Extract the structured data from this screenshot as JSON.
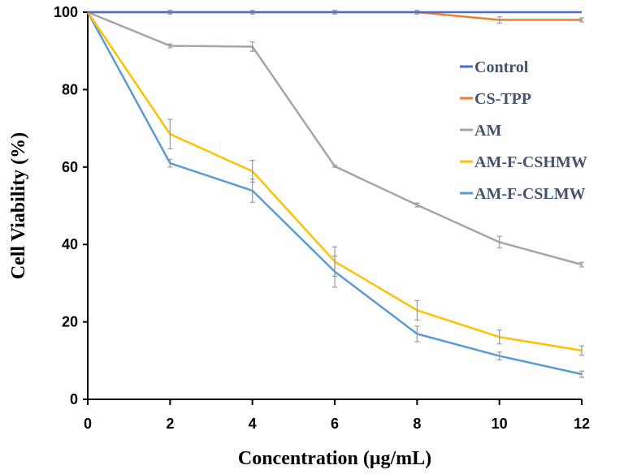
{
  "chart_data": {
    "type": "line",
    "title": "",
    "xlabel": "Concentration (μg/mL)",
    "ylabel": "Cell Viability (%)",
    "xlim": [
      0,
      12
    ],
    "ylim": [
      0,
      100
    ],
    "x_ticks": [
      "0",
      "2",
      "4",
      "6",
      "8",
      "10",
      "12"
    ],
    "y_ticks": [
      "0",
      "20",
      "40",
      "60",
      "80",
      "100"
    ],
    "legend_position": "right",
    "grid": false,
    "x": [
      0,
      2,
      4,
      6,
      8,
      10,
      12
    ],
    "series": [
      {
        "name": "Control",
        "color": "#4472C4",
        "values": [
          100,
          100,
          100,
          100,
          100,
          100,
          100
        ],
        "errors": [
          0,
          0,
          0,
          0,
          0,
          0,
          0
        ]
      },
      {
        "name": "CS-TPP",
        "color": "#ED7D31",
        "values": [
          100,
          100,
          100,
          100,
          100,
          98,
          98
        ],
        "errors": [
          0,
          0.5,
          0.5,
          0.5,
          0.5,
          0.8,
          0.5
        ]
      },
      {
        "name": "AM",
        "color": "#A5A5A5",
        "values": [
          100,
          91.3,
          91.1,
          60.2,
          50.2,
          40.6,
          34.8
        ],
        "errors": [
          0,
          0.5,
          1.2,
          0.3,
          0.5,
          1.5,
          0.6
        ]
      },
      {
        "name": "AM-F-CSHMW",
        "color": "#FFC000",
        "values": [
          100,
          68.5,
          58.9,
          35.6,
          23.0,
          16.1,
          12.6
        ],
        "errors": [
          0,
          3.8,
          2.8,
          3.8,
          2.5,
          1.8,
          1.2
        ]
      },
      {
        "name": "AM-F-CSLMW",
        "color": "#5B9BD5",
        "values": [
          100,
          61.0,
          53.9,
          33.0,
          16.9,
          11.2,
          6.5
        ],
        "errors": [
          0,
          1.0,
          3.0,
          4.0,
          2.0,
          1.0,
          0.8
        ]
      }
    ]
  }
}
